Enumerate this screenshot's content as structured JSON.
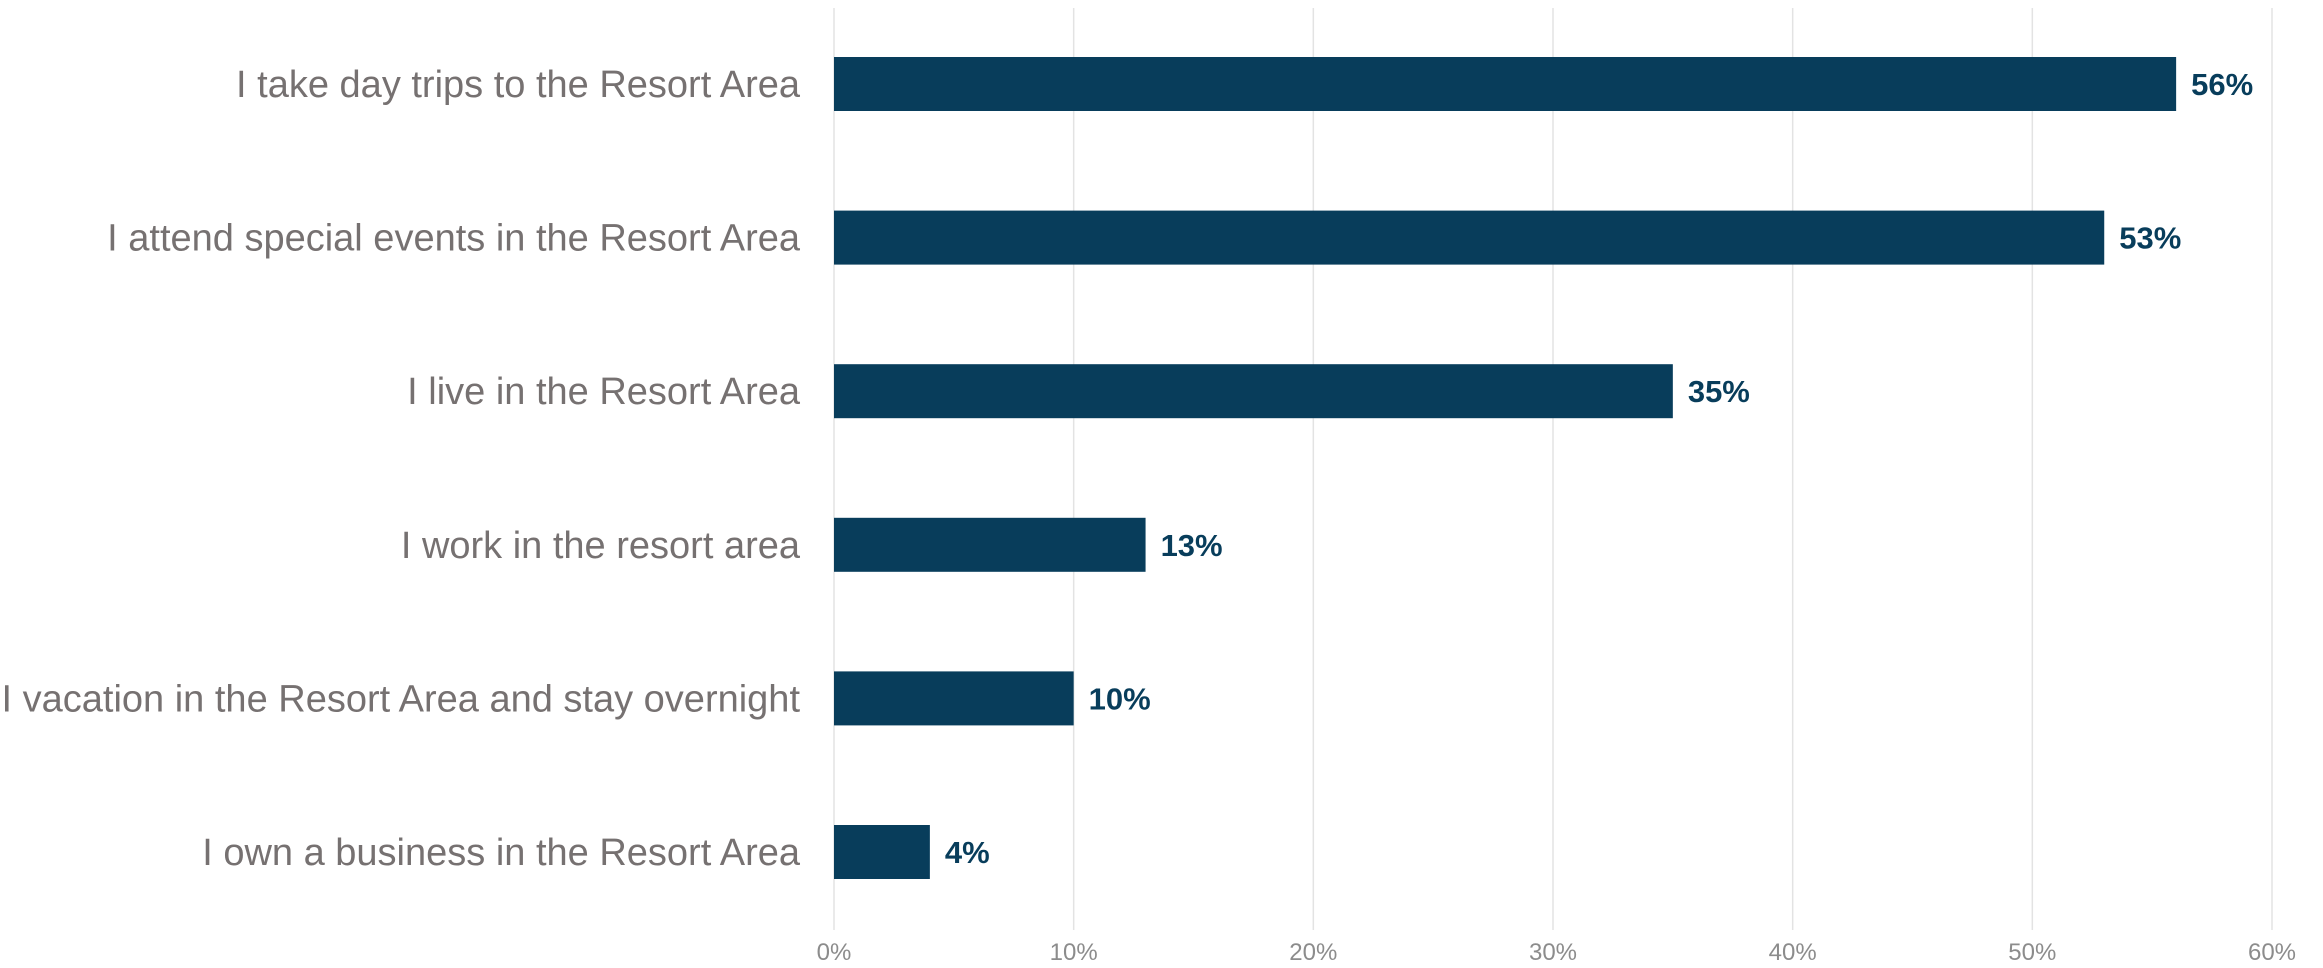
{
  "chart_data": {
    "type": "bar",
    "orientation": "horizontal",
    "categories": [
      "I take day trips to the Resort Area",
      "I attend special events in the Resort Area",
      "I live in the Resort Area",
      "I work in the resort area",
      "I vacation in the Resort Area and stay overnight",
      "I own a business in the Resort Area"
    ],
    "values": [
      56,
      53,
      35,
      13,
      10,
      4
    ],
    "data_labels": [
      "56%",
      "53%",
      "35%",
      "13%",
      "10%",
      "4%"
    ],
    "xlim": [
      0,
      60
    ],
    "x_ticks": [
      0,
      10,
      20,
      30,
      40,
      50,
      60
    ],
    "x_tick_labels": [
      "0%",
      "10%",
      "20%",
      "30%",
      "40%",
      "50%",
      "60%"
    ],
    "title": "",
    "xlabel": "",
    "ylabel": "",
    "grid": "vertical",
    "legend": "none",
    "bar_color": "#083d5b",
    "label_color": "#083d5b"
  }
}
